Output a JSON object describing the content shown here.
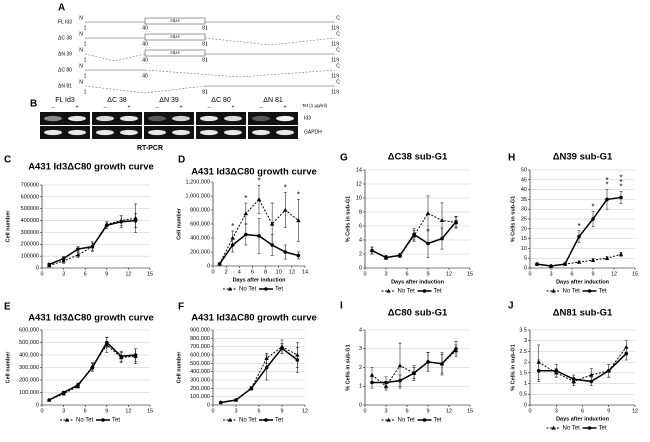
{
  "diagram": {
    "label": "A",
    "rows": [
      {
        "name": "FL Id3",
        "n": "N",
        "c": "C",
        "box": "HLH",
        "positions": [
          "1",
          "40",
          "81",
          "119"
        ]
      },
      {
        "name": "ΔC 38",
        "n": "N",
        "c": "C",
        "box": "HLH",
        "positions": [
          "1",
          "40",
          "81",
          "119"
        ]
      },
      {
        "name": "ΔN 39",
        "n": "N",
        "c": "C",
        "box": "HLH",
        "positions": [
          "1",
          "40",
          "81",
          "119"
        ]
      },
      {
        "name": "ΔC 80",
        "n": "N",
        "c": "C",
        "positions": [
          "1",
          "40",
          "119"
        ]
      },
      {
        "name": "ΔN 81",
        "n": "N",
        "c": "C",
        "positions": [
          "1",
          "81",
          "119"
        ]
      }
    ]
  },
  "gel": {
    "label": "B",
    "groups": [
      {
        "name": "FL Id3",
        "signs": [
          "–",
          "+"
        ]
      },
      {
        "name": "ΔC 38",
        "signs": [
          "–",
          "+"
        ]
      },
      {
        "name": "ΔN 39",
        "signs": [
          "–",
          "+"
        ]
      },
      {
        "name": "ΔC 80",
        "signs": [
          "–",
          "+"
        ]
      },
      {
        "name": "ΔN 81",
        "signs": [
          "–",
          "+"
        ]
      }
    ],
    "treatment": "Tet (1 μg/ml)",
    "rows": [
      "Id3",
      "GAPDH"
    ],
    "method": "RT-PCR"
  },
  "chart_data": [
    {
      "type": "line",
      "label": "C",
      "title": "A431 Id3ΔC80 growth curve",
      "ylabel": "Cell number",
      "grid": true,
      "legend": false,
      "xlim": [
        0,
        15
      ],
      "xticks": [
        0,
        3,
        6,
        9,
        12,
        15
      ],
      "ylim": [
        0,
        700000
      ],
      "yticks": [
        0,
        100000,
        200000,
        300000,
        400000,
        500000,
        600000,
        700000
      ],
      "x": [
        1,
        3,
        5,
        7,
        9,
        11,
        13
      ],
      "series": [
        {
          "color": "#000000",
          "line_style": "dotted",
          "marker": "triangle",
          "values": [
            20000,
            60000,
            110000,
            180000,
            370000,
            400000,
            420000
          ],
          "errors": [
            5000,
            20000,
            20000,
            30000,
            20000,
            40000,
            120000
          ]
        },
        {
          "color": "#000000",
          "line_style": "solid",
          "marker": "circle",
          "values": [
            30000,
            80000,
            160000,
            180000,
            360000,
            390000,
            400000
          ],
          "errors": [
            5000,
            15000,
            20000,
            40000,
            30000,
            50000,
            60000
          ]
        }
      ]
    },
    {
      "type": "line",
      "label": "D",
      "title": "A431 Id3ΔC80 growth curve",
      "ylabel": "Cell number",
      "xlabel": "Days after induction",
      "grid": false,
      "legend": "bottom",
      "xlim": [
        0,
        14
      ],
      "xticks": [
        0,
        2,
        4,
        6,
        8,
        10,
        12,
        14
      ],
      "ylim": [
        0,
        1200000
      ],
      "yticks": [
        0,
        {
          "value": 200000,
          "label": "200,000"
        },
        {
          "value": 400000,
          "label": "400,000"
        },
        {
          "value": 600000,
          "label": "600,000"
        },
        {
          "value": 800000,
          "label": "800,000"
        },
        {
          "value": 1000000,
          "label": "1,000,000"
        },
        {
          "value": 1200000,
          "label": "1,200,000"
        }
      ],
      "x": [
        1,
        3,
        5,
        7,
        9,
        11,
        13
      ],
      "series": [
        {
          "name": "No Tet",
          "color": "#000000",
          "line_style": "dotted",
          "marker": "triangle",
          "values": [
            30000,
            400000,
            750000,
            950000,
            600000,
            800000,
            650000
          ],
          "errors": [
            10000,
            100000,
            150000,
            200000,
            300000,
            250000,
            300000
          ]
        },
        {
          "name": "Tet",
          "color": "#000000",
          "line_style": "solid",
          "marker": "circle",
          "values": [
            30000,
            300000,
            450000,
            430000,
            300000,
            200000,
            150000
          ],
          "errors": [
            10000,
            100000,
            150000,
            250000,
            150000,
            100000,
            50000
          ]
        }
      ],
      "annotations": [
        {
          "text": "*",
          "x": 3
        },
        {
          "text": "*",
          "x": 5
        },
        {
          "text": "*",
          "x": 7
        },
        {
          "text": "*",
          "x": 11
        },
        {
          "text": "*",
          "x": 13
        }
      ]
    },
    {
      "type": "line",
      "label": "E",
      "title": "A431 Id3ΔC80 growth curve",
      "ylabel": "Cell number",
      "grid": true,
      "legend": "bottom",
      "xlim": [
        0,
        15
      ],
      "xticks": [
        0,
        3,
        6,
        9,
        12,
        15
      ],
      "ylim": [
        0,
        600000
      ],
      "yticks": [
        0,
        {
          "value": 100000,
          "label": "100,000"
        },
        {
          "value": 200000,
          "label": "200,000"
        },
        {
          "value": 300000,
          "label": "300,000"
        },
        {
          "value": 400000,
          "label": "400,000"
        },
        {
          "value": 500000,
          "label": "500,000"
        },
        {
          "value": 600000,
          "label": "600,000"
        }
      ],
      "x": [
        1,
        3,
        5,
        7,
        9,
        11,
        13
      ],
      "series": [
        {
          "name": "No Tet",
          "color": "#000000",
          "line_style": "dotted",
          "marker": "triangle",
          "values": [
            40000,
            90000,
            150000,
            310000,
            480000,
            380000,
            390000
          ],
          "errors": [
            5000,
            10000,
            15000,
            30000,
            60000,
            40000,
            60000
          ]
        },
        {
          "name": "Tet",
          "color": "#000000",
          "line_style": "solid",
          "marker": "circle",
          "values": [
            40000,
            100000,
            160000,
            300000,
            500000,
            390000,
            400000
          ],
          "errors": [
            5000,
            10000,
            15000,
            30000,
            40000,
            40000,
            50000
          ]
        }
      ]
    },
    {
      "type": "line",
      "label": "F",
      "title": "A431 Id3ΔC80 growth curve",
      "ylabel": "Cell number",
      "grid": true,
      "legend": "bottom",
      "xlim": [
        0,
        12
      ],
      "xticks": [
        0,
        3,
        6,
        9,
        12
      ],
      "ylim": [
        0,
        900000
      ],
      "yticks": [
        0,
        {
          "value": 100000,
          "label": "100,000"
        },
        {
          "value": 200000,
          "label": "200,000"
        },
        {
          "value": 300000,
          "label": "300,000"
        },
        {
          "value": 400000,
          "label": "400,000"
        },
        {
          "value": 500000,
          "label": "500,000"
        },
        {
          "value": 600000,
          "label": "600,000"
        },
        {
          "value": 700000,
          "label": "700,000"
        },
        {
          "value": 800000,
          "label": "800,000"
        },
        {
          "value": 900000,
          "label": "900,000"
        }
      ],
      "x": [
        1,
        3,
        5,
        7,
        9,
        11
      ],
      "series": [
        {
          "name": "No Tet",
          "color": "#000000",
          "line_style": "dotted",
          "marker": "triangle",
          "values": [
            30000,
            60000,
            200000,
            560000,
            700000,
            600000
          ],
          "errors": [
            5000,
            10000,
            20000,
            60000,
            80000,
            150000
          ]
        },
        {
          "name": "Tet",
          "color": "#000000",
          "line_style": "solid",
          "marker": "circle",
          "values": [
            30000,
            60000,
            200000,
            450000,
            680000,
            540000
          ],
          "errors": [
            5000,
            10000,
            20000,
            150000,
            60000,
            150000
          ]
        }
      ]
    },
    {
      "type": "line",
      "label": "G",
      "title": "ΔC38 sub-G1",
      "ylabel": "% Cells in sub-G1",
      "xlabel": "Days after induction",
      "grid": true,
      "legend": "bottom",
      "xlim": [
        0,
        15
      ],
      "xticks": [
        0,
        3,
        6,
        9,
        12,
        15
      ],
      "ylim": [
        0,
        14
      ],
      "yticks": [
        0,
        2,
        4,
        6,
        8,
        10,
        12,
        14
      ],
      "x": [
        1,
        3,
        5,
        7,
        9,
        11,
        13
      ],
      "series": [
        {
          "name": "No Tet",
          "color": "#000000",
          "line_style": "dotted",
          "marker": "triangle",
          "values": [
            2.5,
            1.5,
            1.8,
            4.6,
            7.8,
            6.8,
            6.5
          ],
          "errors": [
            0.5,
            0.3,
            0.3,
            0.8,
            2.5,
            2.5,
            0.8
          ]
        },
        {
          "name": "Tet",
          "color": "#000000",
          "line_style": "solid",
          "marker": "circle",
          "values": [
            2.5,
            1.5,
            1.8,
            4.8,
            3.5,
            4.2,
            6.6
          ],
          "errors": [
            0.5,
            0.3,
            0.3,
            0.8,
            2.0,
            1.5,
            0.8
          ]
        }
      ]
    },
    {
      "type": "line",
      "label": "H",
      "title": "ΔN39 sub-G1",
      "ylabel": "% Cells in sub-G1",
      "xlabel": "Days after induction",
      "grid": true,
      "legend": "bottom",
      "xlim": [
        0,
        15
      ],
      "xticks": [
        0,
        3,
        6,
        9,
        12,
        15
      ],
      "ylim": [
        0,
        50
      ],
      "yticks": [
        0,
        5,
        10,
        15,
        20,
        25,
        30,
        35,
        40,
        45,
        50
      ],
      "x": [
        1,
        3,
        5,
        7,
        9,
        11,
        13
      ],
      "series": [
        {
          "name": "No Tet",
          "color": "#000000",
          "line_style": "dotted",
          "marker": "triangle",
          "values": [
            2,
            1,
            2,
            3,
            4,
            5,
            7
          ],
          "errors": [
            0.5,
            0.3,
            0.5,
            0.5,
            0.8,
            0.8,
            1
          ]
        },
        {
          "name": "Tet",
          "color": "#000000",
          "line_style": "solid",
          "marker": "circle",
          "values": [
            2,
            1,
            2,
            16,
            25,
            35,
            36
          ],
          "errors": [
            0.5,
            0.3,
            0.5,
            3,
            4,
            5,
            3
          ]
        }
      ],
      "annotations": [
        {
          "text": "*",
          "x": 7
        },
        {
          "text": "*",
          "x": 9
        },
        {
          "text": "**",
          "x": 11
        },
        {
          "text": "***",
          "x": 13
        }
      ]
    },
    {
      "type": "line",
      "label": "I",
      "title": "ΔC80 sub-G1",
      "ylabel": "% Cells in sub-G1",
      "grid": true,
      "legend": "bottom",
      "xlim": [
        0,
        15
      ],
      "xticks": [
        0,
        3,
        6,
        9,
        12,
        15
      ],
      "ylim": [
        0,
        4
      ],
      "yticks": [
        0,
        1,
        2,
        3,
        4
      ],
      "x": [
        1,
        3,
        5,
        7,
        9,
        11,
        13
      ],
      "series": [
        {
          "name": "No Tet",
          "color": "#000000",
          "line_style": "dotted",
          "marker": "triangle",
          "values": [
            1.6,
            1.0,
            2.1,
            1.7,
            2.3,
            2.2,
            2.9
          ],
          "errors": [
            0.4,
            0.2,
            1.2,
            0.3,
            0.5,
            0.6,
            0.3
          ]
        },
        {
          "name": "Tet",
          "color": "#000000",
          "line_style": "solid",
          "marker": "circle",
          "values": [
            1.2,
            1.2,
            1.3,
            1.7,
            2.3,
            2.2,
            3.0
          ],
          "errors": [
            0.3,
            0.3,
            0.3,
            0.4,
            0.5,
            0.5,
            0.4
          ]
        }
      ]
    },
    {
      "type": "line",
      "label": "J",
      "title": "ΔN81 sub-G1",
      "ylabel": "% Cells in sub-G1",
      "xlabel": "Days after induction",
      "grid": true,
      "legend": "bottom",
      "xlim": [
        0,
        12
      ],
      "xticks": [
        0,
        3,
        6,
        9,
        12
      ],
      "ylim": [
        0,
        3.5
      ],
      "yticks": [
        0,
        0.5,
        1,
        1.5,
        2,
        2.5,
        3,
        3.5
      ],
      "x": [
        1,
        3,
        5,
        7,
        9,
        11
      ],
      "series": [
        {
          "name": "No Tet",
          "color": "#000000",
          "line_style": "dotted",
          "marker": "triangle",
          "values": [
            2.0,
            1.5,
            1.1,
            1.4,
            1.6,
            2.7
          ],
          "errors": [
            0.8,
            0.2,
            0.2,
            0.3,
            0.3,
            0.3
          ]
        },
        {
          "name": "Tet",
          "color": "#000000",
          "line_style": "solid",
          "marker": "circle",
          "values": [
            1.6,
            1.6,
            1.2,
            1.1,
            1.6,
            2.4
          ],
          "errors": [
            0.5,
            0.3,
            0.2,
            0.2,
            0.3,
            0.3
          ]
        }
      ]
    }
  ]
}
